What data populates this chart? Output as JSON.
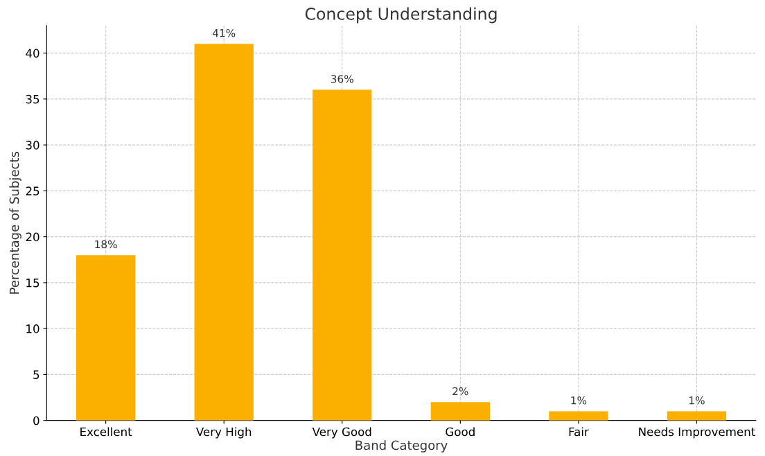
{
  "chart_data": {
    "type": "bar",
    "title": "Concept Understanding",
    "xlabel": "Band Category",
    "ylabel": "Percentage of Subjects",
    "categories": [
      "Excellent",
      "Very High",
      "Very Good",
      "Good",
      "Fair",
      "Needs Improvement"
    ],
    "values": [
      18,
      41,
      36,
      2,
      1,
      1
    ],
    "value_labels": [
      "18%",
      "41%",
      "36%",
      "2%",
      "1%",
      "1%"
    ],
    "color": "#fbb000",
    "ylim": [
      0,
      43
    ],
    "yticks": [
      0,
      5,
      10,
      15,
      20,
      25,
      30,
      35,
      40
    ],
    "grid": true
  }
}
